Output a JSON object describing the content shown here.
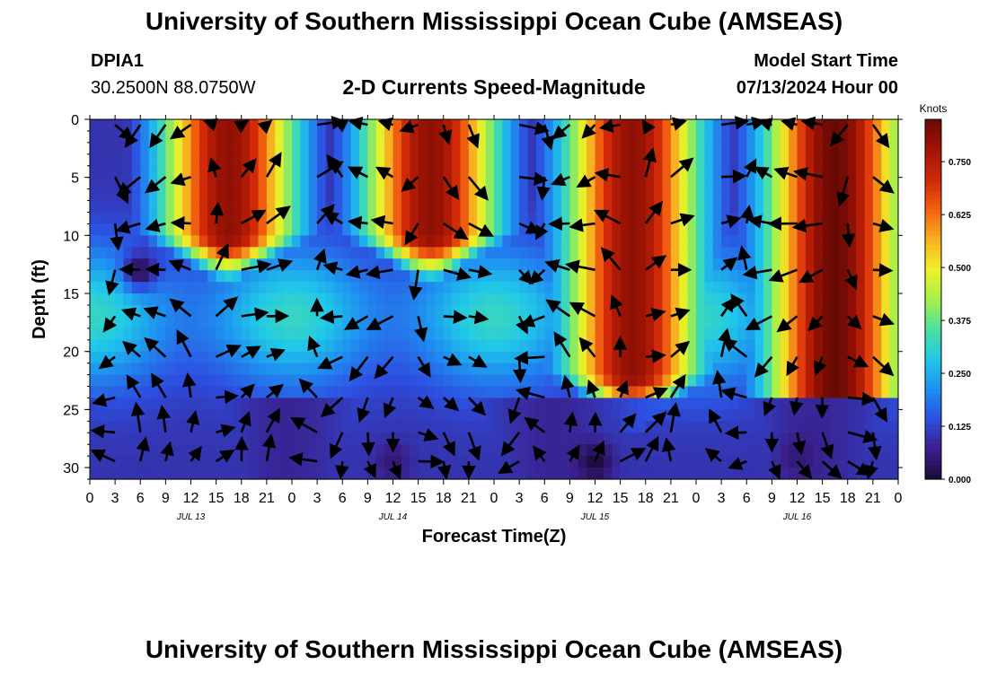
{
  "header": {
    "title": "University of Southern Mississippi Ocean Cube (AMSEAS)",
    "station_id": "DPIA1",
    "station_coords": "30.2500N  88.0750W",
    "plot_title": "2-D Currents Speed-Magnitude",
    "model_start_label": "Model Start Time",
    "model_start_value": "07/13/2024 Hour 00"
  },
  "footer": {
    "title": "University of Southern Mississippi Ocean Cube (AMSEAS)"
  },
  "chart_data": {
    "type": "heatmap",
    "title": "2-D Currents Speed-Magnitude",
    "xlabel": "Forecast Time(Z)",
    "ylabel": "Depth (ft)",
    "x_ticks": [
      "0",
      "3",
      "6",
      "9",
      "12",
      "15",
      "18",
      "21",
      "0",
      "3",
      "6",
      "9",
      "12",
      "15",
      "18",
      "21",
      "0",
      "3",
      "6",
      "9",
      "12",
      "15",
      "18",
      "21",
      "0",
      "3",
      "6",
      "9",
      "12",
      "15",
      "18",
      "21",
      "0"
    ],
    "date_labels": [
      "JUL 13",
      "JUL 14",
      "JUL 15",
      "JUL 16"
    ],
    "date_label_hours": [
      12,
      36,
      60,
      84
    ],
    "xlim_hours": [
      0,
      96
    ],
    "y_ticks": [
      0,
      5,
      10,
      15,
      20,
      25,
      30
    ],
    "ylim": [
      0,
      31
    ],
    "colorbar": {
      "label": "Knots",
      "ticks": [
        "0.000",
        "0.125",
        "0.250",
        "0.375",
        "0.500",
        "0.625",
        "0.750"
      ],
      "range": [
        0,
        0.85
      ],
      "colors": [
        "#1a0b3a",
        "#3a1f8a",
        "#2d4fe0",
        "#1f8ff0",
        "#20c8e8",
        "#4de0a0",
        "#a8f048",
        "#f0f028",
        "#f8b020",
        "#f06010",
        "#d02808",
        "#a01405",
        "#6a0a04"
      ]
    },
    "speed_peaks": [
      {
        "day": "JUL 13",
        "center_hour": 16.5,
        "peak_knots": 0.8,
        "max_depth_ft": 10
      },
      {
        "day": "JUL 14",
        "center_hour": 40.5,
        "peak_knots": 0.8,
        "max_depth_ft": 10
      },
      {
        "day": "JUL 15",
        "center_hour": 64.5,
        "peak_knots": 0.8,
        "max_depth_ft": 22
      },
      {
        "day": "JUL 16",
        "center_hour": 88.5,
        "peak_knots": 0.85,
        "max_depth_ft": 24
      }
    ],
    "low_speed_spots": [
      {
        "hour": 6,
        "depth_ft": 13,
        "knots": 0.02
      },
      {
        "hour": 60,
        "depth_ft": 29.5,
        "knots": 0.0
      },
      {
        "hour": 36,
        "depth_ft": 29.5,
        "knots": 0.05
      },
      {
        "hour": 84,
        "depth_ft": 29,
        "knots": 0.05
      }
    ],
    "vector_depths_ft": [
      0,
      4.5,
      8.5,
      12.5,
      16.5,
      20,
      23.5,
      26.5,
      29
    ],
    "vector_hours": [
      3,
      6,
      9,
      12,
      15,
      18,
      21,
      27,
      30,
      33,
      36,
      39,
      42,
      45,
      51,
      54,
      57,
      60,
      63,
      66,
      69,
      75,
      78,
      81,
      84,
      87,
      90,
      93
    ]
  }
}
